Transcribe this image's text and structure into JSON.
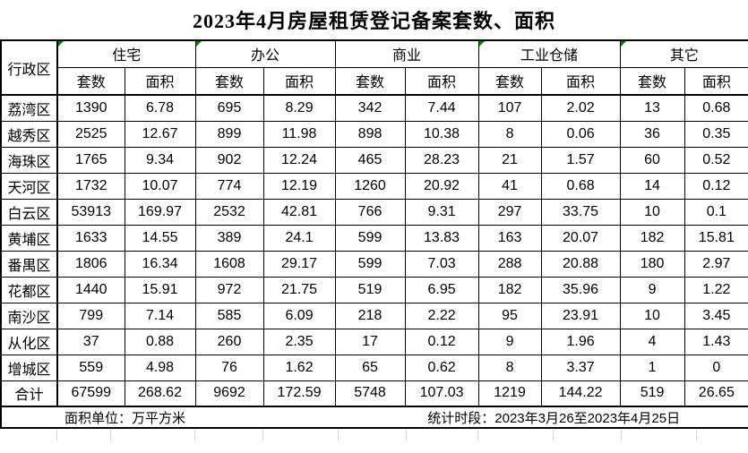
{
  "title": "2023年4月房屋租赁登记备案套数、面积",
  "table": {
    "corner_header": "行政区",
    "subheaders": {
      "units": "套数",
      "area": "面积"
    },
    "categories": [
      {
        "label": "住宅",
        "error_flag": true
      },
      {
        "label": "办公",
        "error_flag": true
      },
      {
        "label": "商业",
        "error_flag": false
      },
      {
        "label": "工业仓储",
        "error_flag": true
      },
      {
        "label": "其它",
        "error_flag": true
      }
    ],
    "rows": [
      {
        "district": "荔湾区",
        "values": [
          "1390",
          "6.78",
          "695",
          "8.29",
          "342",
          "7.44",
          "107",
          "2.02",
          "13",
          "0.68"
        ]
      },
      {
        "district": "越秀区",
        "values": [
          "2525",
          "12.67",
          "899",
          "11.98",
          "898",
          "10.38",
          "8",
          "0.06",
          "36",
          "0.35"
        ]
      },
      {
        "district": "海珠区",
        "values": [
          "1765",
          "9.34",
          "902",
          "12.24",
          "465",
          "28.23",
          "21",
          "1.57",
          "60",
          "0.52"
        ]
      },
      {
        "district": "天河区",
        "values": [
          "1732",
          "10.07",
          "774",
          "12.19",
          "1260",
          "20.92",
          "41",
          "0.68",
          "14",
          "0.12"
        ]
      },
      {
        "district": "白云区",
        "values": [
          "53913",
          "169.97",
          "2532",
          "42.81",
          "766",
          "9.31",
          "297",
          "33.75",
          "10",
          "0.1"
        ]
      },
      {
        "district": "黄埔区",
        "values": [
          "1633",
          "14.55",
          "389",
          "24.1",
          "599",
          "13.83",
          "163",
          "20.07",
          "182",
          "15.81"
        ]
      },
      {
        "district": "番禺区",
        "values": [
          "1806",
          "16.34",
          "1608",
          "29.17",
          "599",
          "7.03",
          "288",
          "20.88",
          "180",
          "2.97"
        ]
      },
      {
        "district": "花都区",
        "values": [
          "1440",
          "15.91",
          "972",
          "21.75",
          "519",
          "6.95",
          "182",
          "35.96",
          "9",
          "1.22"
        ]
      },
      {
        "district": "南沙区",
        "values": [
          "799",
          "7.14",
          "585",
          "6.09",
          "218",
          "2.22",
          "95",
          "23.91",
          "10",
          "3.45"
        ]
      },
      {
        "district": "从化区",
        "values": [
          "37",
          "0.88",
          "260",
          "2.35",
          "17",
          "0.12",
          "9",
          "1.96",
          "4",
          "1.43"
        ]
      },
      {
        "district": "增城区",
        "values": [
          "559",
          "4.98",
          "76",
          "1.62",
          "65",
          "0.62",
          "8",
          "3.37",
          "1",
          "0"
        ]
      }
    ],
    "total_row": {
      "district": "合计",
      "values": [
        "67599",
        "268.62",
        "9692",
        "172.59",
        "5748",
        "107.03",
        "1219",
        "144.22",
        "519",
        "26.65"
      ]
    }
  },
  "footer": {
    "area_unit_label": "面积单位：万平方米",
    "period_label": "统计时段：2023年3月26至2023年4月25日"
  },
  "colors": {
    "text": "#000000",
    "border": "#000000",
    "background": "#ffffff",
    "error_flag_green": "#008000",
    "sheet_gridline": "#d4d4d4"
  }
}
